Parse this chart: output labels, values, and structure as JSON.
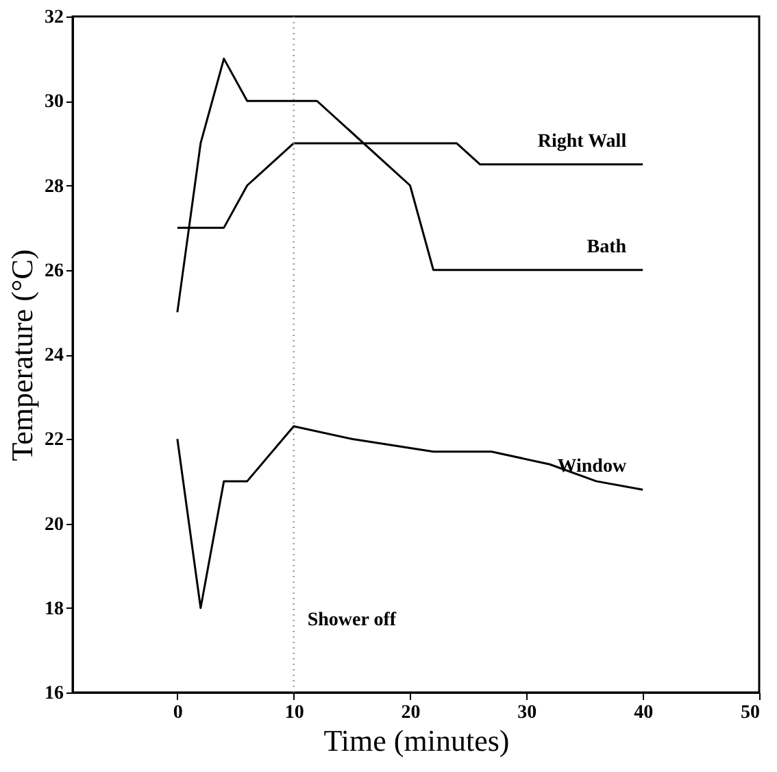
{
  "chart_data": {
    "type": "line",
    "xlabel": "Time (minutes)",
    "ylabel": "Temperature (°C)",
    "xlim": [
      -9,
      50
    ],
    "xticks": [
      0,
      10,
      20,
      30,
      40,
      50
    ],
    "ylim": [
      16,
      32
    ],
    "yticks": [
      16,
      18,
      20,
      22,
      24,
      26,
      28,
      30,
      32
    ],
    "grid": false,
    "marker": "none",
    "line_style": "solid",
    "series": [
      {
        "name": "Bath",
        "color": "#000000",
        "x": [
          0,
          1,
          2,
          4,
          6,
          12,
          20,
          22,
          40
        ],
        "values": [
          25,
          27,
          29,
          31,
          30,
          30,
          28,
          26,
          26
        ]
      },
      {
        "name": "Right Wall",
        "color": "#000000",
        "x": [
          0,
          4,
          6,
          10,
          24,
          26,
          40
        ],
        "values": [
          27,
          27,
          28,
          29,
          29,
          28.5,
          28.5
        ]
      },
      {
        "name": "Window",
        "color": "#000000",
        "x": [
          0,
          2,
          4,
          6,
          10,
          15,
          22,
          27,
          32,
          36,
          40
        ],
        "values": [
          22,
          18,
          21,
          21,
          22.3,
          22.0,
          21.7,
          21.7,
          21.4,
          21.0,
          20.8
        ]
      }
    ],
    "ref_lines": [
      {
        "axis": "x",
        "value": 10,
        "label": "Shower off",
        "color": "#888888",
        "line_style": "dotted"
      }
    ]
  }
}
